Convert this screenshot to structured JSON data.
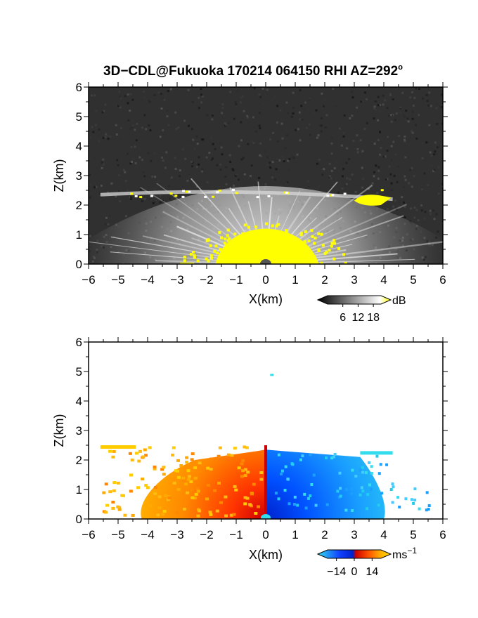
{
  "chart_data": [
    {
      "type": "heatmap",
      "title": "3D−CDL@Fukuoka 170214 064150 RHI AZ=292",
      "title_superscript": "o",
      "xlabel": "X(km)",
      "ylabel": "Z(km)",
      "xlim": [
        -6,
        6
      ],
      "ylim": [
        0,
        6
      ],
      "xticks": [
        "−6",
        "−5",
        "−4",
        "−3",
        "−2",
        "−1",
        "0",
        "1",
        "2",
        "3",
        "4",
        "5",
        "6"
      ],
      "yticks": [
        "0",
        "1",
        "2",
        "3",
        "4",
        "5",
        "6"
      ],
      "colorbar": {
        "unit": "dB",
        "ticks": [
          "6",
          "12",
          "18"
        ],
        "range": [
          0,
          21
        ],
        "colors": [
          "#000000",
          "#ffffff",
          "#ffff00"
        ]
      },
      "background": "#303030",
      "features": [
        {
          "kind": "strong-echo dome",
          "x_range": [
            -1.5,
            1.5
          ],
          "z_top": 1.2,
          "color": "#ffff00"
        },
        {
          "kind": "fan of bright radial rays",
          "origin": [
            0,
            0
          ],
          "z_max": 2.3
        },
        {
          "kind": "cloud-base layer",
          "x_range": [
            -5.6,
            4.3
          ],
          "z": 2.35
        },
        {
          "kind": "yellow patch",
          "x_range": [
            3.0,
            4.2
          ],
          "z": 2.15
        }
      ]
    },
    {
      "type": "heatmap",
      "xlabel": "X(km)",
      "ylabel": "Z(km)",
      "xlim": [
        -6,
        6
      ],
      "ylim": [
        0,
        6
      ],
      "xticks": [
        "−6",
        "−5",
        "−4",
        "−3",
        "−2",
        "−1",
        "0",
        "1",
        "2",
        "3",
        "4",
        "5",
        "6"
      ],
      "yticks": [
        "0",
        "1",
        "2",
        "3",
        "4",
        "5",
        "6"
      ],
      "colorbar": {
        "unit": "ms",
        "unit_superscript": "−1",
        "ticks": [
          "−14",
          "0",
          "14"
        ],
        "range": [
          -21,
          21
        ],
        "colors": [
          "#33ddee",
          "#1040ff",
          "#0022cc",
          "#cc0000",
          "#ff5500",
          "#ffaa00",
          "#ffdd00"
        ]
      },
      "features": [
        {
          "kind": "receding velocity",
          "x_range": [
            -5.6,
            0
          ],
          "z_max": 2.5,
          "value_sign": "positive"
        },
        {
          "kind": "approaching velocity",
          "x_range": [
            0,
            5.6
          ],
          "z_max": 2.4,
          "value_sign": "negative"
        },
        {
          "kind": "isolated point",
          "x": 0.2,
          "z": 4.9
        }
      ]
    }
  ]
}
